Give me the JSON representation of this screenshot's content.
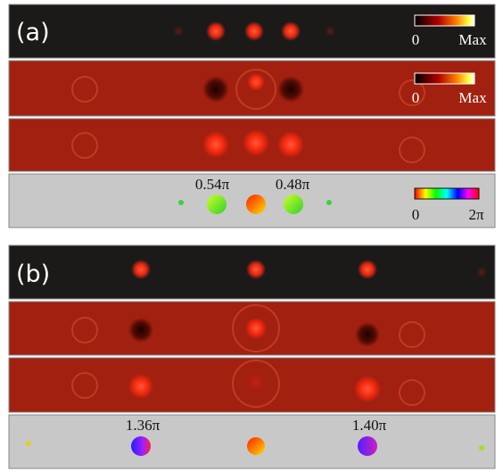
{
  "panel_a": {
    "label": "(a)",
    "scale_1": {
      "min_label": "0",
      "max_label": "Max"
    },
    "scale_2": {
      "min_label": "0",
      "max_label": "Max"
    },
    "phase_scale": {
      "min_label": "0",
      "max_label": "2π"
    },
    "phase_labels": [
      "0.54π",
      "0.48π"
    ]
  },
  "panel_b": {
    "label": "(b)",
    "phase_labels": [
      "1.36π",
      "1.40π"
    ]
  }
}
